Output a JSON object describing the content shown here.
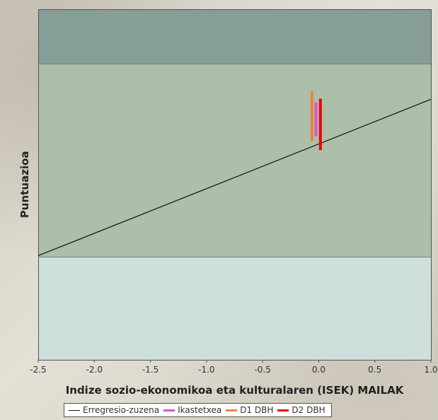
{
  "chart_data": {
    "type": "line",
    "title": "",
    "xlabel": "Indize sozio-ekonomikoa eta kulturalaren (ISEK) MAILAK",
    "ylabel": "Puntuazioa",
    "xlim": [
      -2.5,
      1.0
    ],
    "ylim": [
      0,
      100
    ],
    "x_ticks": [
      "-2.5",
      "-2.0",
      "-1.5",
      "-1.0",
      "-0.5",
      "0.0",
      "0.5",
      "1.0"
    ],
    "x_tick_values": [
      -2.5,
      -2.0,
      -1.5,
      -1.0,
      -0.5,
      0.0,
      0.5,
      1.0
    ],
    "y_ticks_shown": false,
    "grid": false,
    "bands": [
      {
        "from": 84.4,
        "to": 100,
        "color": "#869e97"
      },
      {
        "from": 29.3,
        "to": 84.4,
        "color": "#acbfa9"
      },
      {
        "from": 0,
        "to": 29.3,
        "color": "#cde0db"
      }
    ],
    "regression_line": {
      "name": "Erregresio-zuzena",
      "color": "#111111",
      "points": [
        [
          -2.5,
          29.7
        ],
        [
          1.0,
          74.3
        ]
      ]
    },
    "series": [
      {
        "name": "Ikastetxea",
        "color": "#dd55cc",
        "x": -0.025,
        "y_low": 63.8,
        "y_high": 73.4
      },
      {
        "name": "D1 DBH",
        "color": "#f08040",
        "x": -0.06,
        "y_low": 62.4,
        "y_high": 76.6
      },
      {
        "name": "D2 DBH",
        "color": "#ee0000",
        "x": 0.015,
        "y_low": 59.8,
        "y_high": 74.5
      }
    ],
    "legend": {
      "position": "bottom",
      "items": [
        {
          "label": "Erregresio-zuzena",
          "color": "#111111",
          "style": "thin"
        },
        {
          "label": "Ikastetxea",
          "color": "#dd55cc",
          "style": "thick"
        },
        {
          "label": "D1 DBH",
          "color": "#f08040",
          "style": "thick"
        },
        {
          "label": "D2 DBH",
          "color": "#ee0000",
          "style": "thick"
        }
      ]
    }
  }
}
